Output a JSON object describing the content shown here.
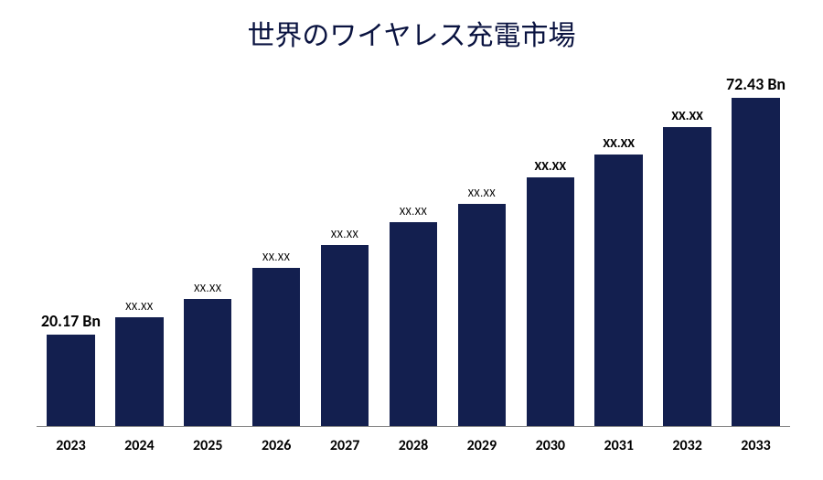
{
  "chart": {
    "type": "bar",
    "title": "世界のワイヤレス充電市場",
    "title_fontsize": 30,
    "title_color": "#0a1340",
    "background_color": "#ffffff",
    "bar_color": "#131f4f",
    "axis_color": "#888888",
    "x_label_fontsize": 16,
    "x_label_fontweight": 700,
    "x_label_color": "#000000",
    "ylim": [
      0,
      80
    ],
    "bar_width_ratio": 0.7,
    "font_family_title": "serif",
    "font_family_labels": "sans-serif",
    "bars": [
      {
        "year": "2023",
        "value": 20.17,
        "label": "20.17 Bn",
        "label_class": "big"
      },
      {
        "year": "2024",
        "value": 24,
        "label": "XX.XX",
        "label_class": "small"
      },
      {
        "year": "2025",
        "value": 28,
        "label": "XX.XX",
        "label_class": "small"
      },
      {
        "year": "2026",
        "value": 35,
        "label": "XX.XX",
        "label_class": "small"
      },
      {
        "year": "2027",
        "value": 40,
        "label": "XX.XX",
        "label_class": "small"
      },
      {
        "year": "2028",
        "value": 45,
        "label": "XX.XX",
        "label_class": "small"
      },
      {
        "year": "2029",
        "value": 49,
        "label": "XX.XX",
        "label_class": "small"
      },
      {
        "year": "2030",
        "value": 55,
        "label": "XX.XX",
        "label_class": "med"
      },
      {
        "year": "2031",
        "value": 60,
        "label": "XX.XX",
        "label_class": "med"
      },
      {
        "year": "2032",
        "value": 66,
        "label": "XX.XX",
        "label_class": "med"
      },
      {
        "year": "2033",
        "value": 72.43,
        "label": "72.43 Bn",
        "label_class": "big"
      }
    ]
  }
}
